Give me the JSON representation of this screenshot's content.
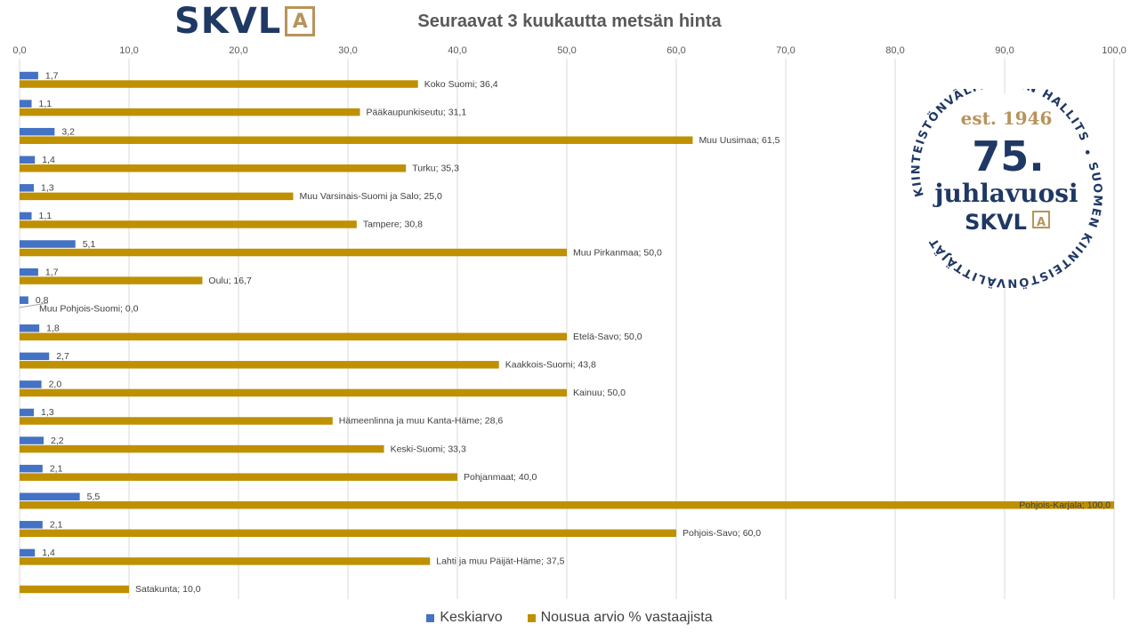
{
  "chart_data": {
    "type": "bar",
    "orientation": "horizontal",
    "title": "Seuraavat 3 kuukautta metsän hinta",
    "xlim": [
      0,
      100
    ],
    "xticks": [
      0,
      10,
      20,
      30,
      40,
      50,
      60,
      70,
      80,
      90,
      100
    ],
    "xtick_labels": [
      "0,0",
      "10,0",
      "20,0",
      "30,0",
      "40,0",
      "50,0",
      "60,0",
      "70,0",
      "80,0",
      "90,0",
      "100,0"
    ],
    "x_axis_position": "top",
    "grid": true,
    "legend_position": "bottom",
    "categories": [
      "Koko Suomi",
      "Pääkaupunkiseutu",
      "Muu Uusimaa",
      "Turku",
      "Muu Varsinais-Suomi ja Salo",
      "Tampere",
      "Muu Pirkanmaa",
      "Oulu",
      "Muu Pohjois-Suomi",
      "Etelä-Savo",
      "Kaakkois-Suomi",
      "Kainuu",
      "Hämeenlinna ja muu Kanta-Häme",
      "Keski-Suomi",
      "Pohjanmaat",
      "Pohjois-Karjala",
      "Pohjois-Savo",
      "Lahti ja muu Päijät-Häme",
      "Satakunta"
    ],
    "series": [
      {
        "name": "Keskiarvo",
        "color": "#4472c4",
        "values": [
          1.7,
          1.1,
          3.2,
          1.4,
          1.3,
          1.1,
          5.1,
          1.7,
          0.8,
          1.8,
          2.7,
          2.0,
          1.3,
          2.2,
          2.1,
          5.5,
          2.1,
          1.4,
          null
        ],
        "labels": [
          "1,7",
          "1,1",
          "3,2",
          "1,4",
          "1,3",
          "1,1",
          "5,1",
          "1,7",
          "0,8",
          "1,8",
          "2,7",
          "2,0",
          "1,3",
          "2,2",
          "2,1",
          "5,5",
          "2,1",
          "1,4",
          ""
        ]
      },
      {
        "name": "Nousua arvio % vastaajista",
        "color": "#bf9000",
        "values": [
          36.4,
          31.1,
          61.5,
          35.3,
          25.0,
          30.8,
          50.0,
          16.7,
          0.0,
          50.0,
          43.8,
          50.0,
          28.6,
          33.3,
          40.0,
          100.0,
          60.0,
          37.5,
          10.0
        ],
        "labels": [
          "Koko Suomi; 36,4",
          "Pääkaupunkiseutu; 31,1",
          "Muu Uusimaa; 61,5",
          "Turku; 35,3",
          "Muu Varsinais-Suomi ja Salo; 25,0",
          "Tampere; 30,8",
          "Muu Pirkanmaa; 50,0",
          "Oulu; 16,7",
          "Muu Pohjois-Suomi; 0,0",
          "Etelä-Savo; 50,0",
          "Kaakkois-Suomi; 43,8",
          "Kainuu; 50,0",
          "Hämeenlinna ja muu Kanta-Häme; 28,6",
          "Keski-Suomi; 33,3",
          "Pohjanmaat; 40,0",
          "Pohjois-Karjala; 100,0",
          "Pohjois-Savo; 60,0",
          "Lahti ja muu Päijät-Häme; 37,5",
          "Satakunta; 10,0"
        ]
      }
    ]
  },
  "logo": {
    "text": "SKVL",
    "mark": "A"
  },
  "seal": {
    "ring_top": "KIINTEISTÖNVÄLITYKSEN HALLITSIJA",
    "ring_bottom": "• SUOMEN KIINTEISTÖNVÄLITTÄJÄT RY •",
    "est": "est. 1946",
    "number": "75.",
    "word": "juhlavuosi",
    "brand": "SKVL",
    "mark": "A"
  }
}
